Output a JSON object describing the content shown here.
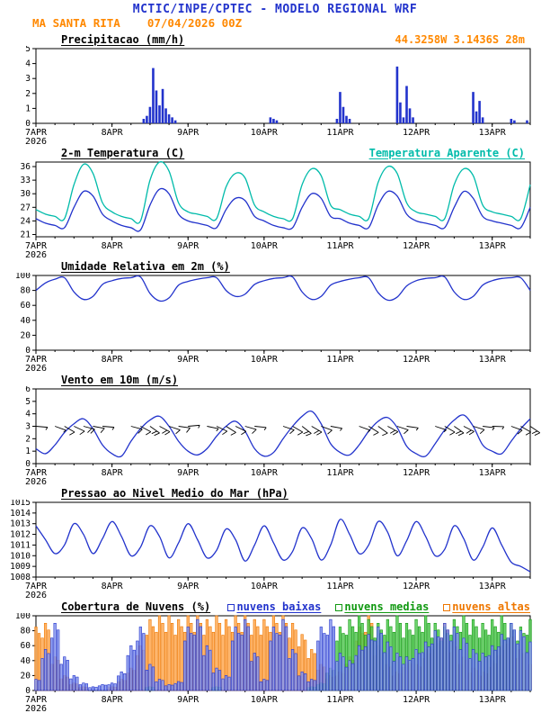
{
  "header": {
    "title": "MCTIC/INPE/CPTEC - MODELO REGIONAL WRF",
    "station": "MA SANTA RITA",
    "run": "07/04/2026 00Z",
    "location": "44.3258W 3.1436S 28m"
  },
  "colors": {
    "blue": "#2233cc",
    "orange": "#ff8800",
    "cyan": "#00bbaa",
    "green": "#119911"
  },
  "x_axis": {
    "t_max": 156,
    "step_hours": 3,
    "minor_tick_hours": 6,
    "day_tick_hours": [
      0,
      24,
      48,
      72,
      96,
      120,
      144
    ],
    "tick_labels": [
      "7APR",
      "8APR",
      "9APR",
      "10APR",
      "11APR",
      "12APR",
      "13APR"
    ],
    "year_label": "2026"
  },
  "chart_data": [
    {
      "type": "bar",
      "title": "Precipitacao (mm/h)",
      "ylabel": "mm/h",
      "ylim": [
        0,
        5
      ],
      "yticks": [
        0,
        1,
        2,
        3,
        4,
        5
      ],
      "color": "#2233cc",
      "points": [
        [
          34,
          0.3
        ],
        [
          35,
          0.5
        ],
        [
          36,
          1.1
        ],
        [
          37,
          3.7
        ],
        [
          38,
          2.2
        ],
        [
          39,
          1.2
        ],
        [
          40,
          2.3
        ],
        [
          41,
          1.0
        ],
        [
          42,
          0.6
        ],
        [
          43,
          0.4
        ],
        [
          44,
          0.2
        ],
        [
          74,
          0.4
        ],
        [
          75,
          0.3
        ],
        [
          76,
          0.2
        ],
        [
          95,
          0.3
        ],
        [
          96,
          2.1
        ],
        [
          97,
          1.1
        ],
        [
          98,
          0.5
        ],
        [
          99,
          0.3
        ],
        [
          114,
          3.8
        ],
        [
          115,
          1.4
        ],
        [
          116,
          0.4
        ],
        [
          117,
          2.5
        ],
        [
          118,
          1.0
        ],
        [
          119,
          0.4
        ],
        [
          138,
          2.1
        ],
        [
          139,
          0.8
        ],
        [
          140,
          1.5
        ],
        [
          141,
          0.4
        ],
        [
          150,
          0.3
        ],
        [
          151,
          0.2
        ],
        [
          155,
          0.2
        ]
      ]
    },
    {
      "type": "line",
      "title": "2-m Temperatura (C)",
      "title_right": "Temperatura Aparente (C)",
      "ylabel": "C",
      "ylim": [
        20.5,
        37
      ],
      "yticks": [
        21,
        24,
        27,
        30,
        33,
        36
      ],
      "series": [
        {
          "name": "2-m Temperatura (C)",
          "color": "#2233cc",
          "values": [
            24.5,
            23.5,
            23,
            22.5,
            27,
            30.5,
            29.5,
            25.5,
            24,
            23,
            22.5,
            22,
            27.5,
            31,
            30,
            25.5,
            24,
            23.5,
            23,
            22.5,
            26.5,
            29,
            28.5,
            25,
            24,
            23,
            22.5,
            22.5,
            27,
            30,
            29,
            25,
            24.5,
            23.5,
            23,
            22.5,
            27.5,
            30.5,
            29.5,
            25.5,
            24,
            23.5,
            23,
            22.5,
            27,
            30.5,
            29,
            25,
            24,
            23.5,
            23,
            22.5,
            27
          ]
        },
        {
          "name": "Temperatura Aparente (C)",
          "color": "#00bbaa",
          "values": [
            26.5,
            25.5,
            25,
            24.5,
            32,
            36.5,
            34.5,
            28,
            26,
            25,
            24.5,
            24,
            33,
            37,
            35,
            28,
            26,
            25.5,
            25,
            24.5,
            31.5,
            34.5,
            33.5,
            27.5,
            26,
            25,
            24.5,
            24.5,
            32,
            35.5,
            34,
            27.5,
            26.5,
            25.5,
            25,
            24.5,
            32.5,
            36,
            34.5,
            28,
            26,
            25.5,
            25,
            24.5,
            32,
            35.5,
            34,
            27.5,
            26,
            25.5,
            25,
            24.5,
            32
          ]
        }
      ]
    },
    {
      "type": "line",
      "title": "Umidade Relativa em 2m (%)",
      "ylabel": "%",
      "ylim": [
        0,
        100
      ],
      "yticks": [
        0,
        20,
        40,
        60,
        80,
        100
      ],
      "series": [
        {
          "name": "Umidade Relativa em 2m",
          "color": "#2233cc",
          "values": [
            80,
            90,
            95,
            97,
            78,
            68,
            72,
            88,
            93,
            96,
            97,
            98,
            76,
            66,
            70,
            87,
            92,
            95,
            97,
            97,
            80,
            72,
            75,
            88,
            93,
            96,
            97,
            98,
            78,
            68,
            72,
            87,
            92,
            95,
            97,
            97,
            77,
            67,
            71,
            86,
            93,
            96,
            97,
            98,
            78,
            68,
            72,
            87,
            93,
            96,
            97,
            97,
            80
          ]
        }
      ]
    },
    {
      "type": "wind",
      "title": "Vento em 10m (m/s)",
      "ylabel": "m/s",
      "ylim": [
        0,
        6
      ],
      "yticks": [
        0,
        1,
        2,
        3,
        4,
        5,
        6
      ],
      "barb_level": 3,
      "series": [
        {
          "name": "Velocidade do vento em 10m",
          "color": "#2233cc",
          "values": [
            1.2,
            0.8,
            1.5,
            2.5,
            3.2,
            3.6,
            2.8,
            1.5,
            0.8,
            0.6,
            1.8,
            2.8,
            3.5,
            3.8,
            3,
            1.8,
            1,
            0.7,
            1.2,
            2.2,
            3,
            3.4,
            2.6,
            1.2,
            0.6,
            0.9,
            2,
            3,
            3.8,
            4.2,
            3.2,
            1.6,
            0.9,
            0.7,
            1.5,
            2.6,
            3.4,
            3.7,
            2.9,
            1.4,
            0.8,
            0.6,
            1.6,
            2.7,
            3.5,
            3.9,
            3,
            1.5,
            1,
            0.8,
            1.8,
            2.8,
            3.6
          ]
        }
      ],
      "directions_deg": [
        95,
        100,
        110,
        120,
        115,
        105,
        100,
        95,
        90,
        95,
        105,
        118,
        125,
        118,
        108,
        98,
        85,
        92,
        102,
        115,
        122,
        116,
        106,
        96,
        88,
        96,
        108,
        120,
        128,
        120,
        110,
        100,
        92,
        98,
        110,
        122,
        126,
        118,
        108,
        98,
        90,
        96,
        108,
        120,
        125,
        117,
        107,
        97,
        92,
        98,
        110,
        120,
        124
      ]
    },
    {
      "type": "line",
      "title": "Pressao ao Nivel Medio do Mar (hPa)",
      "ylabel": "hPa",
      "ylim": [
        1008,
        1015
      ],
      "yticks": [
        1008,
        1009,
        1010,
        1011,
        1012,
        1013,
        1014,
        1015
      ],
      "series": [
        {
          "name": "Pressao ao nivel medio do mar",
          "color": "#2233cc",
          "values": [
            1012.8,
            1011.5,
            1010.2,
            1011,
            1013,
            1012,
            1010.2,
            1011.6,
            1013.2,
            1011.8,
            1010,
            1010.8,
            1012.8,
            1011.8,
            1009.8,
            1011.2,
            1013,
            1011.5,
            1009.8,
            1010.5,
            1012.5,
            1011.5,
            1009.5,
            1011,
            1012.8,
            1011.2,
            1009.6,
            1010.4,
            1012.6,
            1011.6,
            1009.6,
            1011,
            1013.4,
            1012,
            1010.2,
            1011,
            1013.2,
            1012.2,
            1010,
            1011.4,
            1013.2,
            1011.8,
            1010,
            1010.6,
            1012.8,
            1011.6,
            1009.6,
            1010.8,
            1012.6,
            1011,
            1009.4,
            1009,
            1008.5
          ]
        }
      ]
    },
    {
      "type": "cloud",
      "title": "Cobertura de Nuvens (%)",
      "ylabel": "%",
      "ylim": [
        0,
        100
      ],
      "yticks": [
        0,
        20,
        40,
        60,
        80,
        100
      ],
      "series": [
        {
          "name": "nuvens baixas",
          "color": "#2233cc",
          "fill": "#8899ee",
          "values": [
            15,
            55,
            90,
            45,
            20,
            10,
            5,
            8,
            10,
            25,
            60,
            85,
            35,
            15,
            8,
            12,
            85,
            95,
            60,
            30,
            20,
            85,
            95,
            50,
            15,
            85,
            95,
            55,
            25,
            15,
            85,
            95,
            50,
            40,
            60,
            75,
            85,
            65,
            50,
            45,
            55,
            65,
            80,
            90,
            85,
            70,
            55,
            50,
            60,
            75,
            90,
            80,
            65
          ]
        },
        {
          "name": "nuvens medias",
          "color": "#119911",
          "fill": "#55cc55",
          "values": [
            0,
            0,
            0,
            0,
            0,
            0,
            0,
            0,
            0,
            0,
            0,
            0,
            5,
            0,
            0,
            0,
            0,
            0,
            0,
            5,
            0,
            0,
            0,
            0,
            0,
            0,
            0,
            0,
            0,
            5,
            10,
            30,
            85,
            95,
            100,
            95,
            90,
            95,
            100,
            90,
            95,
            100,
            90,
            85,
            95,
            100,
            95,
            90,
            95,
            100,
            90,
            85,
            95
          ]
        },
        {
          "name": "nuvens altas",
          "color": "#ee7700",
          "fill": "#ffaa55",
          "values": [
            85,
            90,
            45,
            20,
            10,
            5,
            0,
            0,
            5,
            15,
            30,
            60,
            95,
            100,
            100,
            95,
            100,
            100,
            95,
            100,
            95,
            100,
            100,
            95,
            95,
            100,
            100,
            90,
            75,
            55,
            35,
            20,
            25,
            45,
            85,
            100,
            60,
            35,
            25,
            40,
            35,
            55,
            70,
            90,
            65,
            45,
            30,
            25,
            40,
            60,
            80,
            55,
            35
          ]
        }
      ]
    }
  ]
}
